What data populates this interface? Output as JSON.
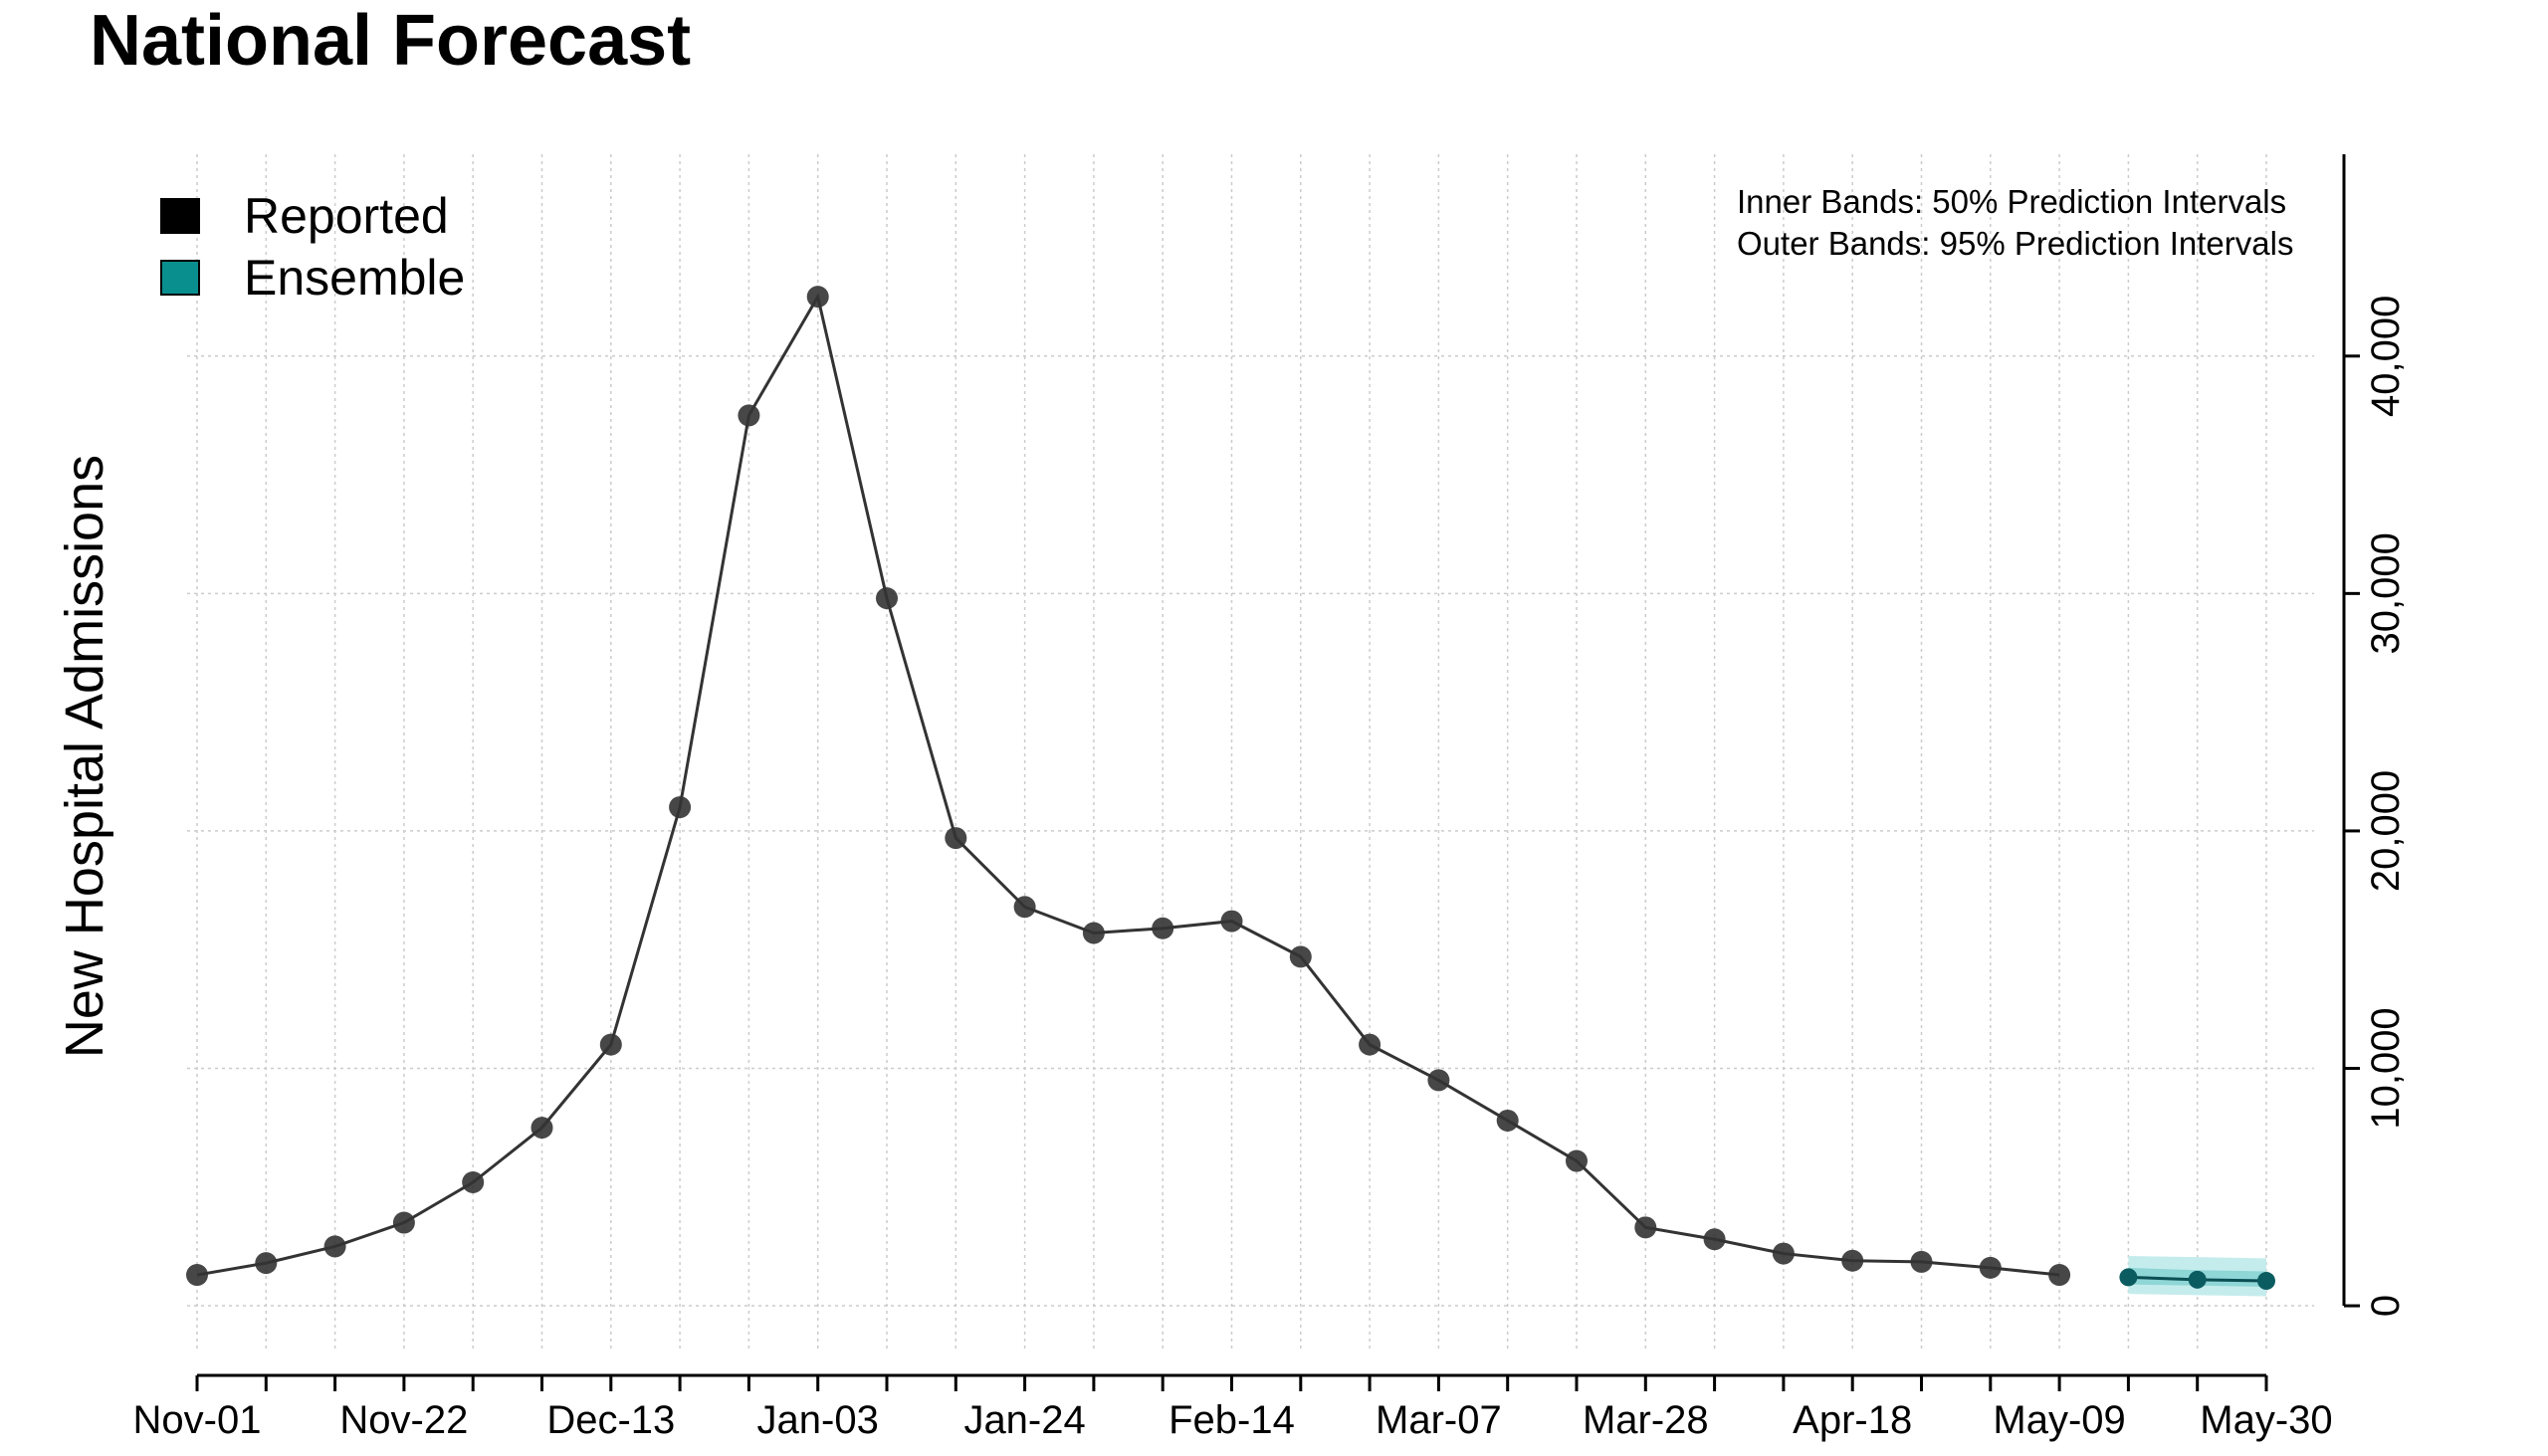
{
  "title": "National Forecast",
  "colors": {
    "reported": "#000000",
    "ensemble": "#0a8f8f",
    "band_inner": "#8fd6d6",
    "band_outer": "#c5ecec",
    "grid": "#cccccc",
    "line": "#333333"
  },
  "chart_data": {
    "type": "line",
    "ylabel": "New Hospital Admissions",
    "x_tick_labels": [
      "Nov-01",
      "Nov-22",
      "Dec-13",
      "Jan-03",
      "Jan-24",
      "Feb-14",
      "Mar-07",
      "Mar-28",
      "Apr-18",
      "May-09",
      "May-30"
    ],
    "y_tick_labels": [
      "0",
      "10,000",
      "20,000",
      "30,000",
      "40,000"
    ],
    "y_ticks": [
      0,
      10000,
      20000,
      30000,
      40000
    ],
    "ylim": [
      -1800,
      48500
    ],
    "grid": true,
    "legend": {
      "placement": "top-left",
      "items": [
        {
          "name": "Reported",
          "color": "#000000"
        },
        {
          "name": "Ensemble",
          "color": "#0a8f8f"
        }
      ]
    },
    "annotations": [
      "Inner Bands: 50% Prediction Intervals",
      "Outer Bands: 95% Prediction Intervals"
    ],
    "series": [
      {
        "name": "Reported",
        "x": [
          "Nov-01",
          "Nov-08",
          "Nov-15",
          "Nov-22",
          "Nov-29",
          "Dec-06",
          "Dec-13",
          "Dec-20",
          "Dec-27",
          "Jan-03",
          "Jan-10",
          "Jan-17",
          "Jan-24",
          "Jan-31",
          "Feb-07",
          "Feb-14",
          "Feb-21",
          "Feb-28",
          "Mar-07",
          "Mar-14",
          "Mar-21",
          "Mar-28",
          "Apr-04",
          "Apr-11",
          "Apr-18",
          "Apr-25",
          "May-02",
          "May-09"
        ],
        "values": [
          1300,
          1800,
          2500,
          3500,
          5200,
          7500,
          11000,
          21000,
          37500,
          42500,
          29800,
          19700,
          16800,
          15700,
          15900,
          16200,
          14700,
          11000,
          9500,
          7800,
          6100,
          3300,
          2800,
          2200,
          1900,
          1850,
          1600,
          1300
        ]
      },
      {
        "name": "Ensemble",
        "x": [
          "May-16",
          "May-23",
          "May-30"
        ],
        "values": [
          1200,
          1100,
          1050
        ],
        "pi50_lower": [
          900,
          850,
          800
        ],
        "pi50_upper": [
          1600,
          1500,
          1450
        ],
        "pi95_lower": [
          500,
          450,
          400
        ],
        "pi95_upper": [
          2100,
          2050,
          2000
        ]
      }
    ]
  }
}
